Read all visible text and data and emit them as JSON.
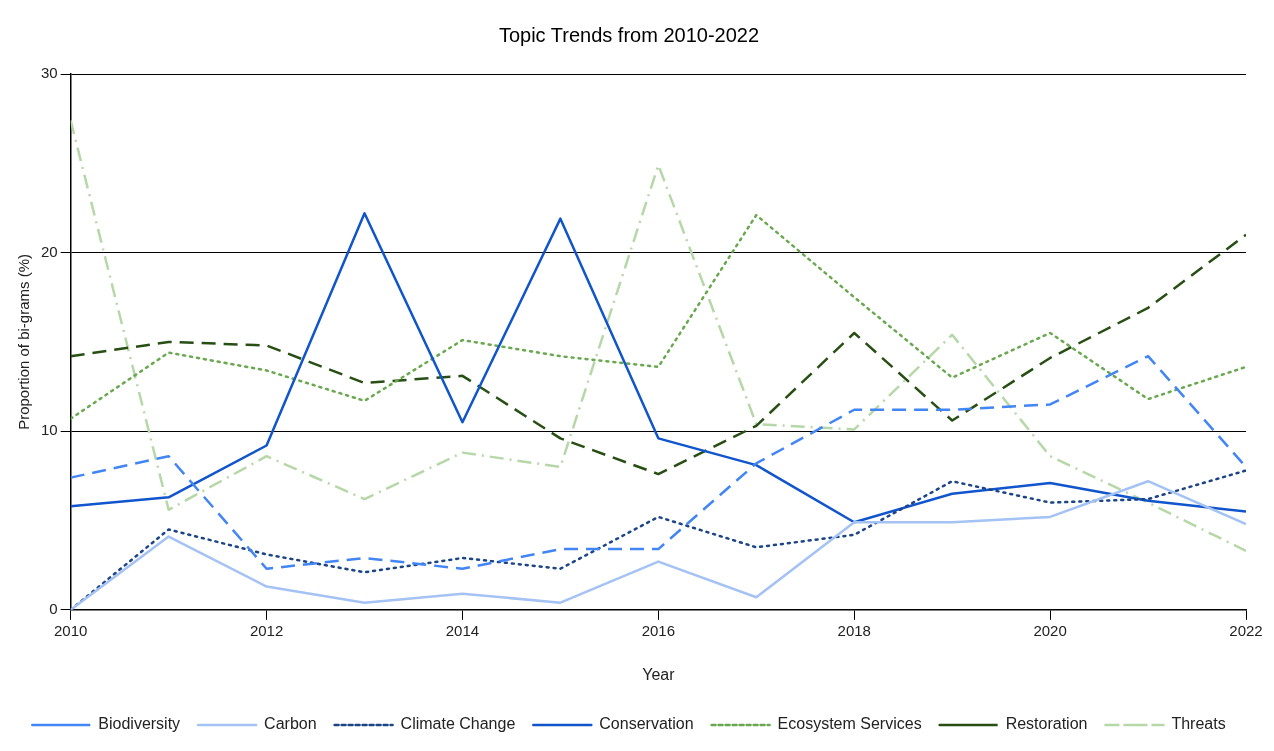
{
  "chart_data": {
    "type": "line",
    "title": "Topic Trends from 2010-2022",
    "xlabel": "Year",
    "ylabel": "Proportion of bi-grams (%)",
    "x": [
      2010,
      2011,
      2012,
      2013,
      2014,
      2015,
      2016,
      2017,
      2018,
      2019,
      2020,
      2021,
      2022
    ],
    "series": [
      {
        "name": "Biodiversity",
        "color": "#4285f4",
        "line_style": "dashed",
        "values": [
          7.4,
          8.6,
          2.3,
          2.9,
          2.3,
          3.4,
          3.4,
          8.2,
          11.2,
          11.2,
          11.5,
          14.2,
          8.0
        ]
      },
      {
        "name": "Carbon",
        "color": "#a4c2f4",
        "line_style": "solid",
        "values": [
          0,
          4.1,
          1.3,
          0.4,
          0.9,
          0.4,
          2.7,
          0.7,
          4.9,
          4.9,
          5.2,
          7.2,
          4.8
        ]
      },
      {
        "name": "Climate Change",
        "color": "#1c4587",
        "line_style": "dotted",
        "values": [
          0,
          4.5,
          3.1,
          2.1,
          2.9,
          2.3,
          5.2,
          3.5,
          4.2,
          7.2,
          6.0,
          6.2,
          7.8
        ]
      },
      {
        "name": "Conservation",
        "color": "#1155cc",
        "line_style": "solid",
        "values": [
          5.8,
          6.3,
          9.2,
          22.2,
          10.5,
          21.9,
          9.6,
          8.1,
          4.9,
          6.5,
          7.1,
          6.1,
          5.5
        ]
      },
      {
        "name": "Ecosystem Services",
        "color": "#6aa84f",
        "line_style": "dotted",
        "values": [
          10.7,
          14.4,
          13.4,
          11.7,
          15.1,
          14.2,
          13.6,
          22.1,
          17.5,
          13.0,
          15.5,
          11.8,
          13.6
        ]
      },
      {
        "name": "Restoration",
        "color": "#274e13",
        "line_style": "dashed",
        "values": [
          14.2,
          15.0,
          14.8,
          12.7,
          13.1,
          9.6,
          7.6,
          10.3,
          15.5,
          10.6,
          14.1,
          16.9,
          21.0
        ]
      },
      {
        "name": "Threats",
        "color": "#b6d7a8",
        "line_style": "dashdot",
        "values": [
          27.4,
          5.6,
          8.6,
          6.2,
          8.8,
          8.0,
          24.9,
          10.4,
          10.1,
          15.4,
          8.6,
          6.0,
          3.3
        ]
      }
    ],
    "xlim": [
      2010,
      2022
    ],
    "xticks": [
      2010,
      2012,
      2014,
      2016,
      2018,
      2020,
      2022
    ],
    "ylim": [
      0,
      30
    ],
    "yticks": [
      0,
      10,
      20,
      30
    ],
    "grid": "y",
    "legend": "bottom",
    "marker": "none"
  }
}
